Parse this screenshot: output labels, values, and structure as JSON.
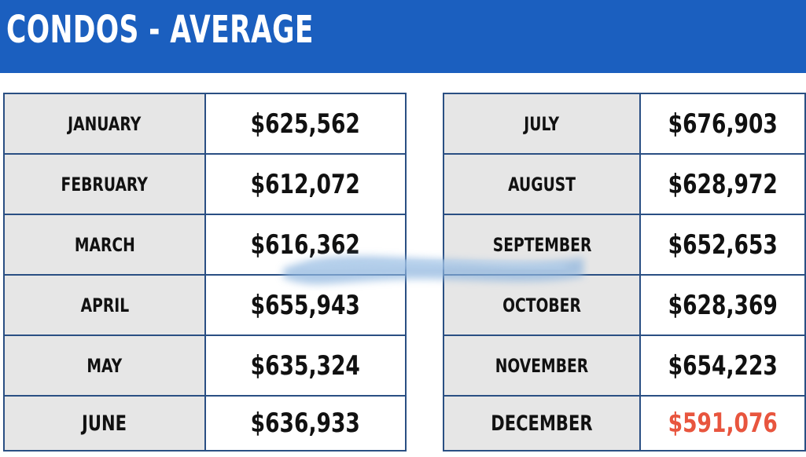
{
  "title": "CONDOS - AVERAGE",
  "left_table": [
    {
      "month": "JANUARY",
      "value": "$625,562"
    },
    {
      "month": "FEBRUARY",
      "value": "$612,072"
    },
    {
      "month": "MARCH",
      "value": "$616,362"
    },
    {
      "month": "APRIL",
      "value": "$655,943"
    },
    {
      "month": "MAY",
      "value": "$635,324"
    },
    {
      "month": "JUNE",
      "value": "$636,933"
    }
  ],
  "right_table": [
    {
      "month": "JULY",
      "value": "$676,903"
    },
    {
      "month": "AUGUST",
      "value": "$628,972"
    },
    {
      "month": "SEPTEMBER",
      "value": "$652,653"
    },
    {
      "month": "OCTOBER",
      "value": "$628,369"
    },
    {
      "month": "NOVEMBER",
      "value": "$654,223"
    },
    {
      "month": "DECEMBER",
      "value": "$591,076"
    }
  ],
  "colors": {
    "header": "#1b5fbf",
    "month_cell": "#e6e6e6",
    "border": "#2a4f83",
    "highlight": "#e8553e"
  }
}
